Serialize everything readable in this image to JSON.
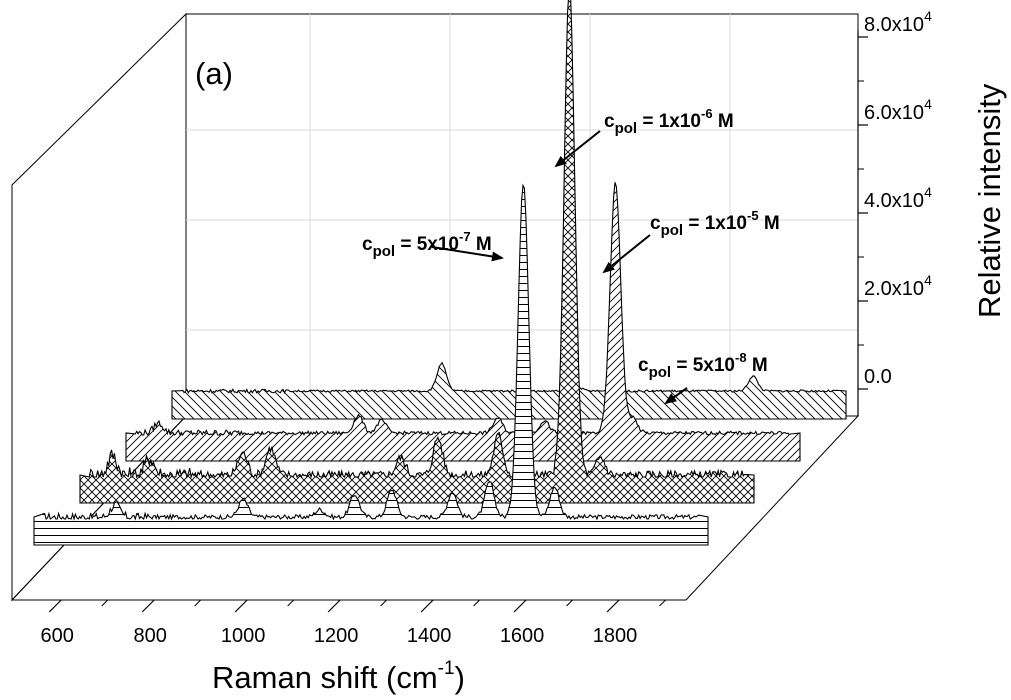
{
  "chart_data": {
    "type": "line",
    "subtype": "3d-waterfall-stacked-spectra",
    "panel_label": "(a)",
    "xlabel": "Raman shift (cm",
    "xlabel_sup": "-1",
    "xlabel_close": ")",
    "ylabel": "Relative intensity",
    "x_ticks": [
      "600",
      "800",
      "1000",
      "1200",
      "1400",
      "1600",
      "1800"
    ],
    "xlim": [
      550,
      2000
    ],
    "y_ticks": [
      {
        "mantissa": "0.0",
        "exp": ""
      },
      {
        "mantissa": "2.0x10",
        "exp": "4"
      },
      {
        "mantissa": "4.0x10",
        "exp": "4"
      },
      {
        "mantissa": "6.0x10",
        "exp": "4"
      },
      {
        "mantissa": "8.0x10",
        "exp": "4"
      }
    ],
    "y_tick_values": [
      0,
      20000,
      40000,
      60000,
      80000
    ],
    "series": [
      {
        "label_prefix": "c",
        "label_sub": "pol",
        "label_eq": " = 5x10",
        "label_sup": "-7",
        "label_unit": " M",
        "fill": "horizontal-lines",
        "peaks": [
          {
            "x": 725,
            "h": 2500
          },
          {
            "x": 1000,
            "h": 3500
          },
          {
            "x": 1165,
            "h": 1500
          },
          {
            "x": 1240,
            "h": 4500
          },
          {
            "x": 1320,
            "h": 5500
          },
          {
            "x": 1450,
            "h": 5000
          },
          {
            "x": 1530,
            "h": 7000
          },
          {
            "x": 1603,
            "h": 67000
          },
          {
            "x": 1670,
            "h": 6000
          }
        ]
      },
      {
        "label_prefix": "c",
        "label_sub": "pol",
        "label_eq": " = 1x10",
        "label_sup": "-6",
        "label_unit": " M",
        "fill": "cross-hatch",
        "peaks": [
          {
            "x": 620,
            "h": 4000
          },
          {
            "x": 700,
            "h": 3500
          },
          {
            "x": 900,
            "h": 4500
          },
          {
            "x": 960,
            "h": 5500
          },
          {
            "x": 1240,
            "h": 3500
          },
          {
            "x": 1320,
            "h": 7500
          },
          {
            "x": 1450,
            "h": 8000
          },
          {
            "x": 1603,
            "h": 98000
          },
          {
            "x": 1670,
            "h": 3500
          }
        ]
      },
      {
        "label_prefix": "c",
        "label_sub": "pol",
        "label_eq": " = 1x10",
        "label_sup": "-5",
        "label_unit": " M",
        "fill": "diagonal-right",
        "peaks": [
          {
            "x": 620,
            "h": 2000
          },
          {
            "x": 1050,
            "h": 3500
          },
          {
            "x": 1100,
            "h": 2500
          },
          {
            "x": 1350,
            "h": 3000
          },
          {
            "x": 1450,
            "h": 2500
          },
          {
            "x": 1603,
            "h": 50000
          },
          {
            "x": 1640,
            "h": 3000
          }
        ]
      },
      {
        "label_prefix": "c",
        "label_sub": "pol",
        "label_eq": " = 5x10",
        "label_sup": "-8",
        "label_unit": " M",
        "fill": "diagonal-left",
        "peaks": [
          {
            "x": 1130,
            "h": 5500
          },
          {
            "x": 1420,
            "h": 1000
          },
          {
            "x": 1800,
            "h": 3000
          }
        ]
      }
    ],
    "grid": true,
    "legend": "none"
  }
}
